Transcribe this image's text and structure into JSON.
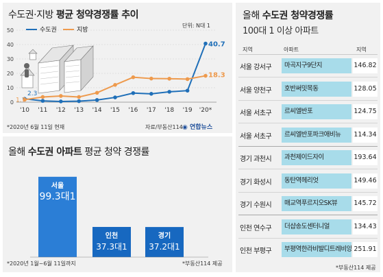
{
  "colors": {
    "capital": "#1f6fb8",
    "regional": "#ee9a4d",
    "bar_capital": "#2b7ed6",
    "bar_other": "#1768c0",
    "apt_cell": "#a8dcea"
  },
  "chart_data": [
    {
      "type": "line",
      "title_regular": "수도권·지방 ",
      "title_bold": "평균 청약경쟁률 추이",
      "unit": "단위: N대 1",
      "x": [
        "'10",
        "'11",
        "'12",
        "'13",
        "'14",
        "'15",
        "'16",
        "'17",
        "'18",
        "'19",
        "'20*"
      ],
      "series": [
        {
          "name": "수도권",
          "values": [
            2.3,
            0.9,
            0.5,
            0.7,
            1.5,
            3.3,
            6.3,
            5.8,
            7.2,
            8.0,
            40.7
          ]
        },
        {
          "name": "지방",
          "values": [
            1.7,
            3.6,
            4.3,
            3.6,
            6.5,
            12.0,
            17.3,
            16.4,
            16.3,
            16.0,
            18.3
          ]
        }
      ],
      "value_labels": {
        "capital_first": "2.3",
        "regional_first": "1.7",
        "capital_last": "40.7",
        "regional_last": "18.3"
      },
      "ylim": [
        0,
        50
      ],
      "yticks": [
        "0",
        "10",
        "20",
        "30",
        "40",
        "50"
      ],
      "grid": true,
      "legend": "top-left",
      "footnote": "*2020년 6월 11일 현재",
      "source": "자료/부동산114",
      "logo": "연합뉴스"
    },
    {
      "type": "bar",
      "title_regular1": "올해 ",
      "title_bold": "수도권 아파트",
      "title_regular2": " 평균 청약 경쟁률",
      "categories": [
        "서울",
        "인천",
        "경기"
      ],
      "values": [
        99.3,
        37.3,
        37.2
      ],
      "value_labels": [
        "99.3대1",
        "37.3대1",
        "37.2대1"
      ],
      "footnote": "*2020년 1월~6월 11일까지",
      "source": "*부동산114 제공"
    },
    {
      "type": "table",
      "title_regular1": "올해 ",
      "title_bold": "수도권 청약경쟁률",
      "subtitle": "100대 1 이상 아파트",
      "columns": [
        "지역",
        "아파트",
        "지역"
      ],
      "rows": [
        {
          "region": "서울  강서구",
          "apartment": "마곡지구9단지",
          "value": "146.82"
        },
        {
          "region": "서울  양천구",
          "apartment": "호반써밋목동",
          "value": "128.05"
        },
        {
          "region": "서울  서초구",
          "apartment": "르씨엘반포",
          "value": "124.75"
        },
        {
          "region": "서울  서초구",
          "apartment": "르씨엘반포파크애비뉴",
          "value": "114.34"
        },
        {
          "region": "경기  과천시",
          "apartment": "과천제이드자이",
          "value": "193.64"
        },
        {
          "region": "경기  화성시",
          "apartment": "동탄역헤리엇",
          "value": "149.46"
        },
        {
          "region": "경기  수원시",
          "apartment": "매교역푸르지오SK뷰",
          "value": "145.72"
        },
        {
          "region": "인천  연수구",
          "apartment": "더샵송도센터니얼",
          "value": "134.43"
        },
        {
          "region": "인천  부평구",
          "apartment": "부평역한라비발디트레비앙",
          "value": "251.91"
        }
      ],
      "source": "*부동산114 제공"
    }
  ]
}
